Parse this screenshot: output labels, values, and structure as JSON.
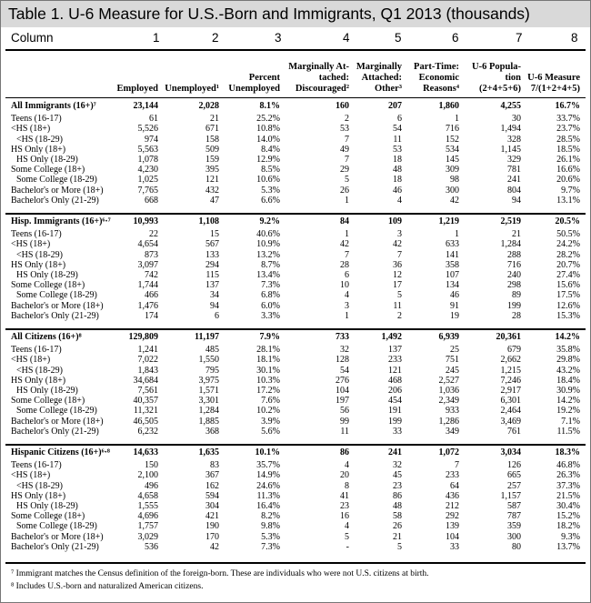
{
  "title": "Table 1. U-6 Measure for U.S.-Born and Immigrants, Q1 2013 (thousands)",
  "column_label": "Column",
  "column_numbers": [
    "1",
    "2",
    "3",
    "4",
    "5",
    "6",
    "7",
    "8"
  ],
  "headers": [
    [
      "Employed"
    ],
    [
      "Unemployed¹"
    ],
    [
      "Percent",
      "Unemployed"
    ],
    [
      "Marginally At-",
      "tached:",
      "Discouraged²"
    ],
    [
      "Marginally",
      "Attached:",
      "Other³"
    ],
    [
      "Part-Time:",
      "Economic",
      "Reasons⁴"
    ],
    [
      "U-6 Popula-",
      "tion",
      "(2+4+5+6)"
    ],
    [
      "U-6 Measure",
      "7/(1+2+4+5)"
    ]
  ],
  "sections": [
    {
      "rows": [
        {
          "label": "All Immigrants (16+)⁷",
          "indent": false,
          "lead": true,
          "values": [
            "23,144",
            "2,028",
            "8.1%",
            "160",
            "207",
            "1,860",
            "4,255",
            "16.7%"
          ]
        },
        {
          "label": "Teens (16-17)",
          "indent": false,
          "values": [
            "61",
            "21",
            "25.2%",
            "2",
            "6",
            "1",
            "30",
            "33.7%"
          ]
        },
        {
          "label": "<HS (18+)",
          "indent": false,
          "values": [
            "5,526",
            "671",
            "10.8%",
            "53",
            "54",
            "716",
            "1,494",
            "23.7%"
          ]
        },
        {
          "label": "<HS (18-29)",
          "indent": true,
          "values": [
            "974",
            "158",
            "14.0%",
            "7",
            "11",
            "152",
            "328",
            "28.5%"
          ]
        },
        {
          "label": "HS Only (18+)",
          "indent": false,
          "values": [
            "5,563",
            "509",
            "8.4%",
            "49",
            "53",
            "534",
            "1,145",
            "18.5%"
          ]
        },
        {
          "label": "HS Only (18-29)",
          "indent": true,
          "values": [
            "1,078",
            "159",
            "12.9%",
            "7",
            "18",
            "145",
            "329",
            "26.1%"
          ]
        },
        {
          "label": "Some College (18+)",
          "indent": false,
          "values": [
            "4,230",
            "395",
            "8.5%",
            "29",
            "48",
            "309",
            "781",
            "16.6%"
          ]
        },
        {
          "label": "Some College (18-29)",
          "indent": true,
          "values": [
            "1,025",
            "121",
            "10.6%",
            "5",
            "18",
            "98",
            "241",
            "20.6%"
          ]
        },
        {
          "label": "Bachelor's or More (18+)",
          "indent": false,
          "values": [
            "7,765",
            "432",
            "5.3%",
            "26",
            "46",
            "300",
            "804",
            "9.7%"
          ]
        },
        {
          "label": "Bachelor's Only (21-29)",
          "indent": false,
          "values": [
            "668",
            "47",
            "6.6%",
            "1",
            "4",
            "42",
            "94",
            "13.1%"
          ]
        }
      ]
    },
    {
      "rows": [
        {
          "label": "Hisp. Immigrants (16+)⁶·⁷",
          "indent": false,
          "lead": true,
          "values": [
            "10,993",
            "1,108",
            "9.2%",
            "84",
            "109",
            "1,219",
            "2,519",
            "20.5%"
          ]
        },
        {
          "label": "Teens (16-17)",
          "indent": false,
          "values": [
            "22",
            "15",
            "40.6%",
            "1",
            "3",
            "1",
            "21",
            "50.5%"
          ]
        },
        {
          "label": "<HS (18+)",
          "indent": false,
          "values": [
            "4,654",
            "567",
            "10.9%",
            "42",
            "42",
            "633",
            "1,284",
            "24.2%"
          ]
        },
        {
          "label": "<HS (18-29)",
          "indent": true,
          "values": [
            "873",
            "133",
            "13.2%",
            "7",
            "7",
            "141",
            "288",
            "28.2%"
          ]
        },
        {
          "label": "HS Only (18+)",
          "indent": false,
          "values": [
            "3,097",
            "294",
            "8.7%",
            "28",
            "36",
            "358",
            "716",
            "20.7%"
          ]
        },
        {
          "label": "HS Only (18-29)",
          "indent": true,
          "values": [
            "742",
            "115",
            "13.4%",
            "6",
            "12",
            "107",
            "240",
            "27.4%"
          ]
        },
        {
          "label": "Some College (18+)",
          "indent": false,
          "values": [
            "1,744",
            "137",
            "7.3%",
            "10",
            "17",
            "134",
            "298",
            "15.6%"
          ]
        },
        {
          "label": "Some College (18-29)",
          "indent": true,
          "values": [
            "466",
            "34",
            "6.8%",
            "4",
            "5",
            "46",
            "89",
            "17.5%"
          ]
        },
        {
          "label": "Bachelor's or More (18+)",
          "indent": false,
          "values": [
            "1,476",
            "94",
            "6.0%",
            "3",
            "11",
            "91",
            "199",
            "12.6%"
          ]
        },
        {
          "label": "Bachelor's Only (21-29)",
          "indent": false,
          "values": [
            "174",
            "6",
            "3.3%",
            "1",
            "2",
            "19",
            "28",
            "15.3%"
          ]
        }
      ]
    },
    {
      "rows": [
        {
          "label": "All Citizens (16+)⁸",
          "indent": false,
          "lead": true,
          "values": [
            "129,809",
            "11,197",
            "7.9%",
            "733",
            "1,492",
            "6,939",
            "20,361",
            "14.2%"
          ]
        },
        {
          "label": "Teens (16-17)",
          "indent": false,
          "values": [
            "1,241",
            "485",
            "28.1%",
            "32",
            "137",
            "25",
            "679",
            "35.8%"
          ]
        },
        {
          "label": "<HS (18+)",
          "indent": false,
          "values": [
            "7,022",
            "1,550",
            "18.1%",
            "128",
            "233",
            "751",
            "2,662",
            "29.8%"
          ]
        },
        {
          "label": "<HS (18-29)",
          "indent": true,
          "values": [
            "1,843",
            "795",
            "30.1%",
            "54",
            "121",
            "245",
            "1,215",
            "43.2%"
          ]
        },
        {
          "label": "HS Only (18+)",
          "indent": false,
          "values": [
            "34,684",
            "3,975",
            "10.3%",
            "276",
            "468",
            "2,527",
            "7,246",
            "18.4%"
          ]
        },
        {
          "label": "HS Only (18-29)",
          "indent": true,
          "values": [
            "7,561",
            "1,571",
            "17.2%",
            "104",
            "206",
            "1,036",
            "2,917",
            "30.9%"
          ]
        },
        {
          "label": "Some College (18+)",
          "indent": false,
          "values": [
            "40,357",
            "3,301",
            "7.6%",
            "197",
            "454",
            "2,349",
            "6,301",
            "14.2%"
          ]
        },
        {
          "label": "Some College (18-29)",
          "indent": true,
          "values": [
            "11,321",
            "1,284",
            "10.2%",
            "56",
            "191",
            "933",
            "2,464",
            "19.2%"
          ]
        },
        {
          "label": "Bachelor's or More (18+)",
          "indent": false,
          "values": [
            "46,505",
            "1,885",
            "3.9%",
            "99",
            "199",
            "1,286",
            "3,469",
            "7.1%"
          ]
        },
        {
          "label": "Bachelor's Only (21-29)",
          "indent": false,
          "values": [
            "6,232",
            "368",
            "5.6%",
            "11",
            "33",
            "349",
            "761",
            "11.5%"
          ]
        }
      ]
    },
    {
      "rows": [
        {
          "label": "Hispanic Citizens (16+)⁶·⁸",
          "indent": false,
          "lead": true,
          "values": [
            "14,633",
            "1,635",
            "10.1%",
            "86",
            "241",
            "1,072",
            "3,034",
            "18.3%"
          ]
        },
        {
          "label": "Teens (16-17)",
          "indent": false,
          "values": [
            "150",
            "83",
            "35.7%",
            "4",
            "32",
            "7",
            "126",
            "46.8%"
          ]
        },
        {
          "label": "<HS (18+)",
          "indent": false,
          "values": [
            "2,100",
            "367",
            "14.9%",
            "20",
            "45",
            "233",
            "665",
            "26.3%"
          ]
        },
        {
          "label": "<HS (18-29)",
          "indent": true,
          "values": [
            "496",
            "162",
            "24.6%",
            "8",
            "23",
            "64",
            "257",
            "37.3%"
          ]
        },
        {
          "label": "HS Only (18+)",
          "indent": false,
          "values": [
            "4,658",
            "594",
            "11.3%",
            "41",
            "86",
            "436",
            "1,157",
            "21.5%"
          ]
        },
        {
          "label": "HS Only (18-29)",
          "indent": true,
          "values": [
            "1,555",
            "304",
            "16.4%",
            "23",
            "48",
            "212",
            "587",
            "30.4%"
          ]
        },
        {
          "label": "Some College (18+)",
          "indent": false,
          "values": [
            "4,696",
            "421",
            "8.2%",
            "16",
            "58",
            "292",
            "787",
            "15.2%"
          ]
        },
        {
          "label": "Some College (18-29)",
          "indent": true,
          "values": [
            "1,757",
            "190",
            "9.8%",
            "4",
            "26",
            "139",
            "359",
            "18.2%"
          ]
        },
        {
          "label": "Bachelor's or More (18+)",
          "indent": false,
          "values": [
            "3,029",
            "170",
            "5.3%",
            "5",
            "21",
            "104",
            "300",
            "9.3%"
          ]
        },
        {
          "label": "Bachelor's Only (21-29)",
          "indent": false,
          "values": [
            "536",
            "42",
            "7.3%",
            "-",
            "5",
            "33",
            "80",
            "13.7%"
          ]
        }
      ]
    }
  ],
  "footnotes": [
    "⁷  Immigrant matches the Census definition of the foreign-born. These are individuals who were not U.S. citizens at birth.",
    "⁸  Includes U.S.-born and naturalized American citizens."
  ]
}
